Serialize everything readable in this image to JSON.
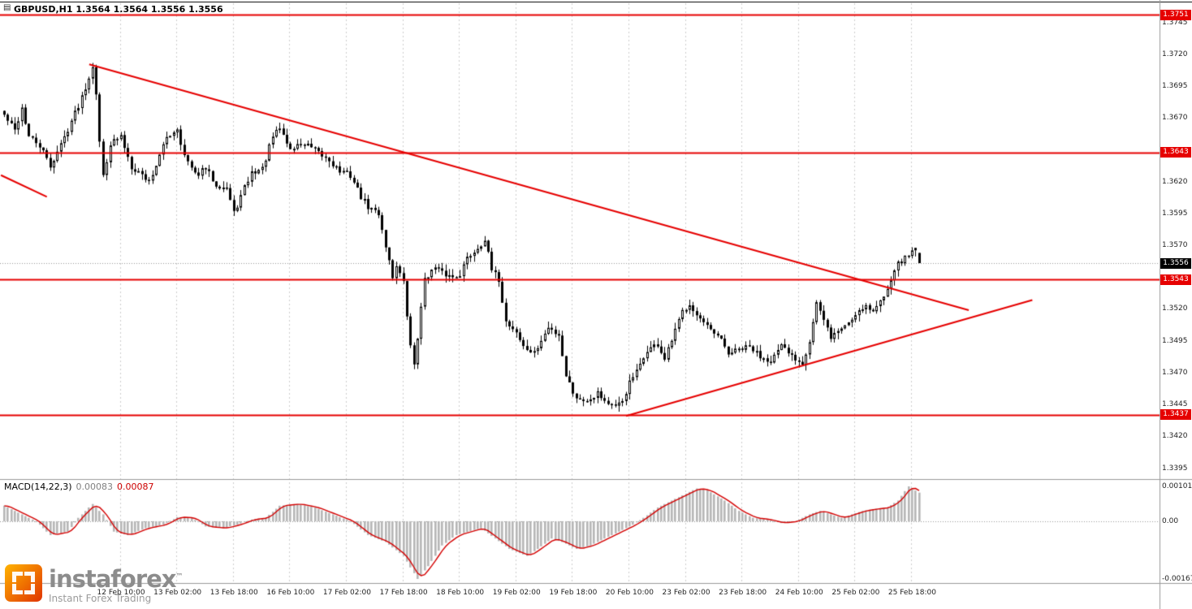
{
  "window": {
    "title": "GBPUSD,H1 1.3564 1.3564 1.3556 1.3556"
  },
  "macd_panel": {
    "name": "MACD(14,22,3)",
    "main_value": "0.00083",
    "signal_value": "0.00087"
  },
  "watermark": {
    "brand": "instaforex",
    "tm": "™",
    "subtitle": "Instant Forex Trading"
  },
  "colors": {
    "level_red": "#e60000",
    "trend_red": "#e60000",
    "signal_red": "#d40000",
    "histogram_gray": "#b6b6b6",
    "grid_gray": "#cdcdcd",
    "candle_black": "#000000",
    "separator_gray": "#9a9a9a",
    "current_price_dash": "#999999"
  },
  "chart_data": {
    "type": "candlestick",
    "symbol": "GBPUSD",
    "timeframe": "H1",
    "last_candle": {
      "o": 1.3564,
      "h": 1.3564,
      "l": 1.3556,
      "c": 1.3556
    },
    "current_price": 1.3556,
    "price_axis": {
      "min": 1.3389,
      "max": 1.376
    },
    "price_ticks": [
      1.3745,
      1.372,
      1.3695,
      1.367,
      1.362,
      1.3595,
      1.357,
      1.352,
      1.3495,
      1.347,
      1.3445,
      1.342,
      1.3395
    ],
    "levels": [
      1.3751,
      1.3643,
      1.3543,
      1.3437
    ],
    "candle_count": 260,
    "close_waypoints": [
      [
        0,
        1.3672
      ],
      [
        3,
        1.366
      ],
      [
        5,
        1.3678
      ],
      [
        7,
        1.3655
      ],
      [
        10,
        1.3648
      ],
      [
        13,
        1.3632
      ],
      [
        17,
        1.3655
      ],
      [
        19,
        1.3668
      ],
      [
        21,
        1.368
      ],
      [
        24,
        1.3702
      ],
      [
        25,
        1.3712
      ],
      [
        26,
        1.369
      ],
      [
        27,
        1.365
      ],
      [
        28,
        1.3625
      ],
      [
        30,
        1.365
      ],
      [
        33,
        1.3655
      ],
      [
        36,
        1.3632
      ],
      [
        38,
        1.3628
      ],
      [
        41,
        1.362
      ],
      [
        44,
        1.364
      ],
      [
        46,
        1.3655
      ],
      [
        49,
        1.3662
      ],
      [
        51,
        1.364
      ],
      [
        54,
        1.3625
      ],
      [
        57,
        1.363
      ],
      [
        60,
        1.3618
      ],
      [
        63,
        1.3615
      ],
      [
        65,
        1.3595
      ],
      [
        68,
        1.3615
      ],
      [
        70,
        1.3627
      ],
      [
        73,
        1.363
      ],
      [
        76,
        1.3655
      ],
      [
        78,
        1.3662
      ],
      [
        81,
        1.3645
      ],
      [
        84,
        1.365
      ],
      [
        86,
        1.3648
      ],
      [
        90,
        1.364
      ],
      [
        92,
        1.3637
      ],
      [
        95,
        1.3628
      ],
      [
        98,
        1.3625
      ],
      [
        101,
        1.3608
      ],
      [
        103,
        1.36
      ],
      [
        106,
        1.3595
      ],
      [
        108,
        1.357
      ],
      [
        110,
        1.3545
      ],
      [
        111,
        1.3555
      ],
      [
        113,
        1.354
      ],
      [
        115,
        1.349
      ],
      [
        116,
        1.3477
      ],
      [
        118,
        1.352
      ],
      [
        119,
        1.3545
      ],
      [
        122,
        1.3552
      ],
      [
        124,
        1.3548
      ],
      [
        127,
        1.3545
      ],
      [
        129,
        1.3548
      ],
      [
        131,
        1.356
      ],
      [
        134,
        1.3568
      ],
      [
        136,
        1.3575
      ],
      [
        138,
        1.355
      ],
      [
        140,
        1.3543
      ],
      [
        142,
        1.351
      ],
      [
        145,
        1.3502
      ],
      [
        147,
        1.349
      ],
      [
        150,
        1.3485
      ],
      [
        152,
        1.3495
      ],
      [
        154,
        1.3505
      ],
      [
        157,
        1.35
      ],
      [
        159,
        1.3468
      ],
      [
        161,
        1.3455
      ],
      [
        163,
        1.3448
      ],
      [
        166,
        1.345
      ],
      [
        168,
        1.3455
      ],
      [
        170,
        1.3448
      ],
      [
        173,
        1.3442
      ],
      [
        175,
        1.3448
      ],
      [
        177,
        1.3462
      ],
      [
        180,
        1.3475
      ],
      [
        182,
        1.3488
      ],
      [
        185,
        1.3492
      ],
      [
        187,
        1.348
      ],
      [
        189,
        1.3495
      ],
      [
        192,
        1.3518
      ],
      [
        194,
        1.3525
      ],
      [
        196,
        1.3515
      ],
      [
        199,
        1.3505
      ],
      [
        201,
        1.35
      ],
      [
        203,
        1.3495
      ],
      [
        205,
        1.3485
      ],
      [
        208,
        1.3488
      ],
      [
        211,
        1.349
      ],
      [
        214,
        1.3483
      ],
      [
        217,
        1.348
      ],
      [
        220,
        1.349
      ],
      [
        223,
        1.3483
      ],
      [
        226,
        1.3478
      ],
      [
        228,
        1.3495
      ],
      [
        230,
        1.3525
      ],
      [
        232,
        1.351
      ],
      [
        234,
        1.3498
      ],
      [
        237,
        1.3505
      ],
      [
        240,
        1.3512
      ],
      [
        242,
        1.352
      ],
      [
        244,
        1.3523
      ],
      [
        246,
        1.3518
      ],
      [
        249,
        1.353
      ],
      [
        251,
        1.3545
      ],
      [
        252,
        1.3552
      ],
      [
        254,
        1.3558
      ],
      [
        256,
        1.3562
      ],
      [
        258,
        1.357
      ],
      [
        259,
        1.3556
      ]
    ],
    "trendlines": [
      {
        "name": "descending-resistance",
        "points": [
          [
            24,
            1.3712
          ],
          [
            273,
            1.3519
          ]
        ]
      },
      {
        "name": "ascending-support",
        "points": [
          [
            176,
            1.3436
          ],
          [
            291,
            1.3527
          ]
        ]
      },
      {
        "name": "left-edge-segment",
        "points": [
          [
            -1,
            1.3625
          ],
          [
            12,
            1.3608
          ]
        ]
      }
    ],
    "time_labels": [
      {
        "idx": 33,
        "label": "12 Feb 10:00"
      },
      {
        "idx": 49,
        "label": "13 Feb 02:00"
      },
      {
        "idx": 65,
        "label": "13 Feb 18:00"
      },
      {
        "idx": 81,
        "label": "16 Feb 10:00"
      },
      {
        "idx": 97,
        "label": "17 Feb 02:00"
      },
      {
        "idx": 113,
        "label": "17 Feb 18:00"
      },
      {
        "idx": 129,
        "label": "18 Feb 10:00"
      },
      {
        "idx": 145,
        "label": "19 Feb 02:00"
      },
      {
        "idx": 161,
        "label": "19 Feb 18:00"
      },
      {
        "idx": 177,
        "label": "20 Feb 10:00"
      },
      {
        "idx": 193,
        "label": "23 Feb 02:00"
      },
      {
        "idx": 209,
        "label": "23 Feb 18:00"
      },
      {
        "idx": 225,
        "label": "24 Feb 10:00"
      },
      {
        "idx": 241,
        "label": "25 Feb 02:00"
      },
      {
        "idx": 257,
        "label": "25 Feb 18:00"
      }
    ],
    "macd": {
      "params": "14,22,3",
      "range": {
        "min": -0.00167,
        "max": 0.00101
      },
      "axis_labels": [
        {
          "v": 0.00101,
          "text": "0.00101"
        },
        {
          "v": 0,
          "text": "0.00"
        },
        {
          "v": -0.00167,
          "text": "-0.00167"
        }
      ],
      "waypoints": [
        [
          0,
          0.00045
        ],
        [
          5,
          0.0002
        ],
        [
          9,
          0
        ],
        [
          13,
          -0.0004
        ],
        [
          18,
          -0.0003
        ],
        [
          21,
          0.0001
        ],
        [
          25,
          0.0005
        ],
        [
          28,
          0.0002
        ],
        [
          31,
          -0.0003
        ],
        [
          35,
          -0.0004
        ],
        [
          40,
          -0.0002
        ],
        [
          45,
          -0.0001
        ],
        [
          49,
          0.00012
        ],
        [
          53,
          0.0001
        ],
        [
          57,
          -0.00015
        ],
        [
          62,
          -0.0002
        ],
        [
          66,
          -0.0001
        ],
        [
          70,
          5e-05
        ],
        [
          74,
          0.0001
        ],
        [
          78,
          0.00045
        ],
        [
          83,
          0.0005
        ],
        [
          88,
          0.0004
        ],
        [
          93,
          0.0002
        ],
        [
          98,
          0
        ],
        [
          103,
          -0.0004
        ],
        [
          108,
          -0.0006
        ],
        [
          113,
          -0.001
        ],
        [
          117,
          -0.00167
        ],
        [
          120,
          -0.0013
        ],
        [
          124,
          -0.0007
        ],
        [
          128,
          -0.0004
        ],
        [
          133,
          -0.00025
        ],
        [
          135,
          -0.0002
        ],
        [
          139,
          -0.0005
        ],
        [
          143,
          -0.0008
        ],
        [
          148,
          -0.001
        ],
        [
          151,
          -0.0008
        ],
        [
          155,
          -0.0005
        ],
        [
          158,
          -0.0006
        ],
        [
          162,
          -0.0008
        ],
        [
          166,
          -0.0007
        ],
        [
          170,
          -0.0005
        ],
        [
          174,
          -0.0003
        ],
        [
          178,
          -0.0001
        ],
        [
          181,
          0.0001
        ],
        [
          185,
          0.0004
        ],
        [
          189,
          0.0006
        ],
        [
          193,
          0.0008
        ],
        [
          196,
          0.00095
        ],
        [
          199,
          0.0009
        ],
        [
          204,
          0.0006
        ],
        [
          208,
          0.0003
        ],
        [
          212,
          0.0001
        ],
        [
          216,
          5e-05
        ],
        [
          220,
          -5e-05
        ],
        [
          224,
          0
        ],
        [
          228,
          0.0002
        ],
        [
          231,
          0.0003
        ],
        [
          234,
          0.0002
        ],
        [
          237,
          0.0001
        ],
        [
          240,
          0.0002
        ],
        [
          243,
          0.0003
        ],
        [
          246,
          0.00035
        ],
        [
          250,
          0.0004
        ],
        [
          253,
          0.0006
        ],
        [
          256,
          0.00101
        ],
        [
          259,
          0.00083
        ]
      ]
    }
  }
}
